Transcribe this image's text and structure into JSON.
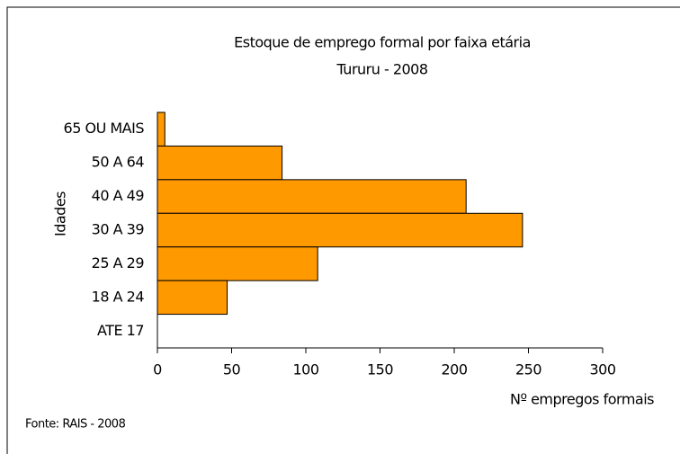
{
  "chart_data": {
    "type": "barh",
    "title": [
      "Estoque de emprego formal por faixa etária",
      "Tururu - 2008"
    ],
    "categories": [
      "65 OU MAIS",
      "50 A 64",
      "40 A 49",
      "30 A 39",
      "25 A 29",
      "18 A 24",
      "ATE 17"
    ],
    "values": [
      5,
      84,
      208,
      246,
      108,
      47,
      0
    ],
    "color": "#ff9900",
    "xlim": [
      0,
      300
    ],
    "xticks": [
      0,
      50,
      100,
      150,
      200,
      250,
      300
    ],
    "xlabel": "Nº empregos formais",
    "ylabel": "Idades",
    "source": "Fonte: RAIS - 2008"
  }
}
